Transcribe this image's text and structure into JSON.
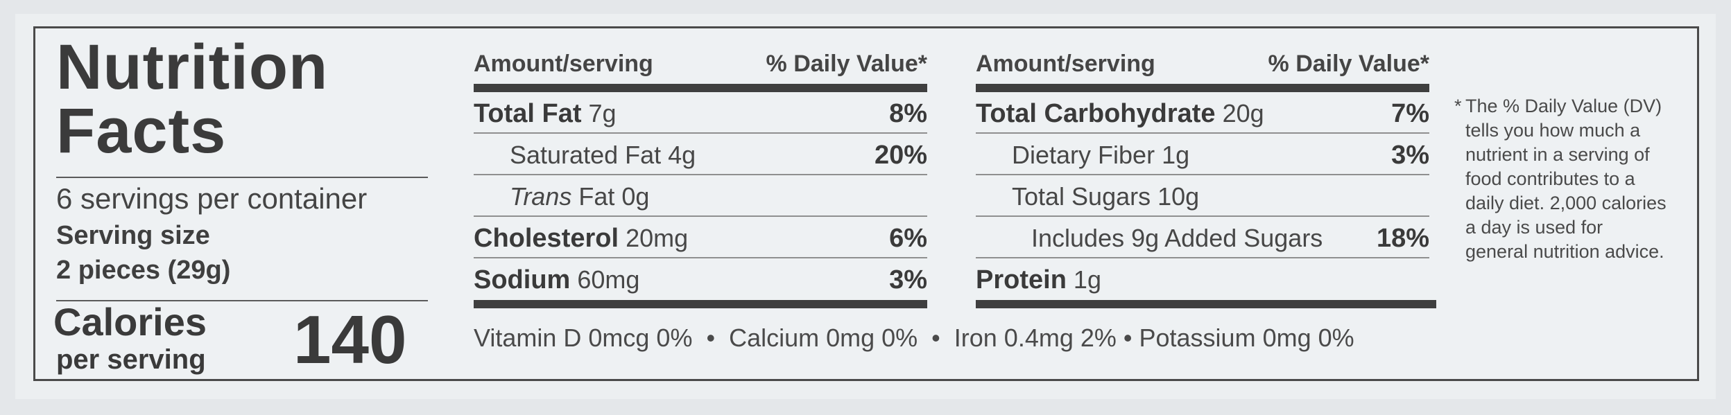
{
  "title_line1": "Nutrition",
  "title_line2": "Facts",
  "servings_per_container": "6 servings per container",
  "serving_size_label": "Serving size",
  "serving_size_value": "2 pieces (29g)",
  "calories_label": "Calories",
  "calories_per": "per serving",
  "calories_value": "140",
  "left_table": {
    "header_amount": "Amount/serving",
    "header_dv": "% Daily Value*",
    "rows": [
      {
        "name": "Total Fat",
        "amount": "7g",
        "dv": "8%"
      },
      {
        "name": "Saturated Fat",
        "amount": "4g",
        "dv": "20%"
      },
      {
        "name": "Trans",
        "amount": "Fat 0g",
        "dv": ""
      },
      {
        "name": "Cholesterol",
        "amount": "20mg",
        "dv": "6%"
      },
      {
        "name": "Sodium",
        "amount": "60mg",
        "dv": "3%"
      }
    ]
  },
  "right_table": {
    "header_amount": "Amount/serving",
    "header_dv": "% Daily Value*",
    "rows": [
      {
        "name": "Total Carbohydrate",
        "amount": "20g",
        "dv": "7%"
      },
      {
        "name": "Dietary Fiber",
        "amount": "1g",
        "dv": "3%"
      },
      {
        "name": "Total Sugars",
        "amount": "10g",
        "dv": ""
      },
      {
        "name": "Includes 9g Added Sugars",
        "amount": "",
        "dv": "18%"
      },
      {
        "name": "Protein",
        "amount": "1g",
        "dv": ""
      }
    ]
  },
  "vitamins": "Vitamin D 0mcg 0%  •  Calcium 0mg 0%  •  Iron 0.4mg 2% • Potassium 0mg 0%",
  "footnote_star": "*",
  "footnote": "The % Daily Value (DV) tells you how much a nutrient in a serving of food contributes to a daily diet. 2,000 calories a day is used for general nutrition advice."
}
